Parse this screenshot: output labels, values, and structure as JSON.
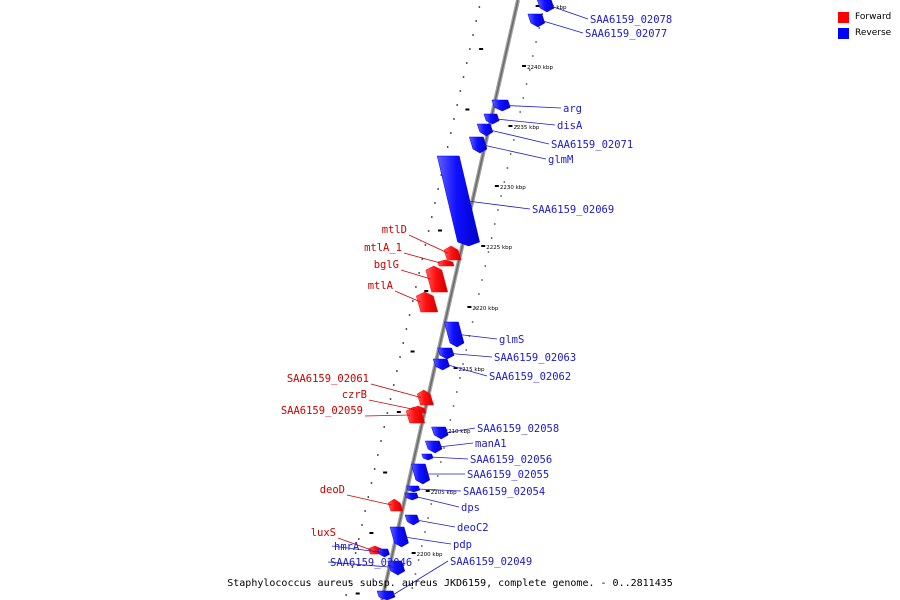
{
  "caption": "Staphylococcus aureus subsp. aureus JKD6159, complete genome. - 0..2811435",
  "legend": [
    {
      "label": "Forward",
      "color": "#ff0000"
    },
    {
      "label": "Reverse",
      "color": "#0000ff"
    }
  ],
  "colors": {
    "forward": "#ff0000",
    "reverse": "#0000ff",
    "forward_label": "#cc0000",
    "reverse_label": "#1a1ad0",
    "backbone": "#808080"
  },
  "ticks": [
    {
      "label": "2245 kbp",
      "position_kbp": 2245
    },
    {
      "label": "2240 kbp",
      "position_kbp": 2240
    },
    {
      "label": "2235 kbp",
      "position_kbp": 2235
    },
    {
      "label": "2230 kbp",
      "position_kbp": 2230
    },
    {
      "label": "2225 kbp",
      "position_kbp": 2225
    },
    {
      "label": "2220 kbp",
      "position_kbp": 2220
    },
    {
      "label": "2215 kbp",
      "position_kbp": 2215
    },
    {
      "label": "2210 kbp",
      "position_kbp": 2210
    },
    {
      "label": "2205 kbp",
      "position_kbp": 2205
    },
    {
      "label": "2200 kbp",
      "position_kbp": 2200
    }
  ],
  "genes": [
    {
      "name": "SAA6159_02078",
      "strand": "reverse"
    },
    {
      "name": "SAA6159_02077",
      "strand": "reverse"
    },
    {
      "name": "arg",
      "strand": "reverse"
    },
    {
      "name": "disA",
      "strand": "reverse"
    },
    {
      "name": "SAA6159_02071",
      "strand": "reverse"
    },
    {
      "name": "glmM",
      "strand": "reverse"
    },
    {
      "name": "SAA6159_02069",
      "strand": "reverse"
    },
    {
      "name": "mtlD",
      "strand": "forward"
    },
    {
      "name": "mtlA_1",
      "strand": "forward"
    },
    {
      "name": "bglG",
      "strand": "forward"
    },
    {
      "name": "mtlA",
      "strand": "forward"
    },
    {
      "name": "glmS",
      "strand": "reverse"
    },
    {
      "name": "SAA6159_02063",
      "strand": "reverse"
    },
    {
      "name": "SAA6159_02062",
      "strand": "reverse"
    },
    {
      "name": "SAA6159_02061",
      "strand": "forward"
    },
    {
      "name": "czrB",
      "strand": "forward"
    },
    {
      "name": "SAA6159_02059",
      "strand": "forward"
    },
    {
      "name": "SAA6159_02058",
      "strand": "reverse"
    },
    {
      "name": "manA1",
      "strand": "reverse"
    },
    {
      "name": "SAA6159_02056",
      "strand": "reverse"
    },
    {
      "name": "SAA6159_02055",
      "strand": "reverse"
    },
    {
      "name": "SAA6159_02054",
      "strand": "reverse"
    },
    {
      "name": "dps",
      "strand": "reverse"
    },
    {
      "name": "deoD",
      "strand": "forward"
    },
    {
      "name": "deoC2",
      "strand": "reverse"
    },
    {
      "name": "pdp",
      "strand": "reverse"
    },
    {
      "name": "luxS",
      "strand": "forward"
    },
    {
      "name": "hmrA",
      "strand": "reverse"
    },
    {
      "name": "SAA6159_02046",
      "strand": "reverse"
    },
    {
      "name": "SAA6159_02049",
      "strand": "reverse"
    }
  ]
}
